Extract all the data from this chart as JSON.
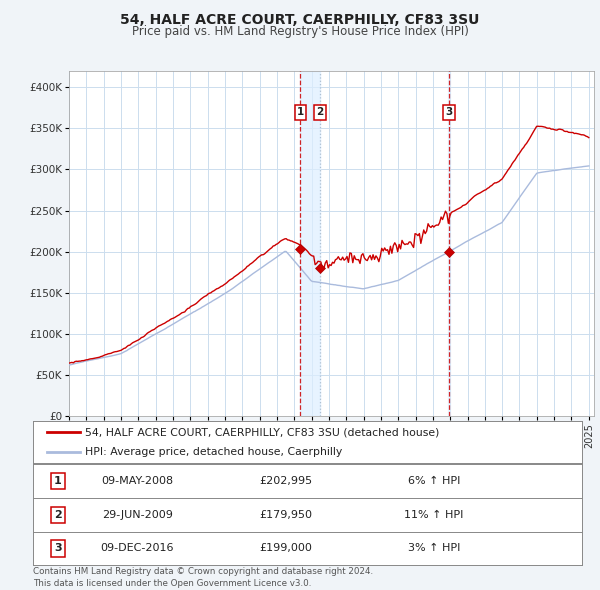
{
  "title": "54, HALF ACRE COURT, CAERPHILLY, CF83 3SU",
  "subtitle": "Price paid vs. HM Land Registry's House Price Index (HPI)",
  "legend_line1": "54, HALF ACRE COURT, CAERPHILLY, CF83 3SU (detached house)",
  "legend_line2": "HPI: Average price, detached house, Caerphilly",
  "footer1": "Contains HM Land Registry data © Crown copyright and database right 2024.",
  "footer2": "This data is licensed under the Open Government Licence v3.0.",
  "sale_color": "#cc0000",
  "hpi_color": "#aabbdd",
  "background_color": "#f0f4f8",
  "plot_bg_color": "#ffffff",
  "grid_color": "#ccddee",
  "ylim": [
    0,
    420000
  ],
  "yticks": [
    0,
    50000,
    100000,
    150000,
    200000,
    250000,
    300000,
    350000,
    400000
  ],
  "ytick_labels": [
    "£0",
    "£50K",
    "£100K",
    "£150K",
    "£200K",
    "£250K",
    "£300K",
    "£350K",
    "£400K"
  ],
  "sale_dates": [
    2008.36,
    2009.49,
    2016.94
  ],
  "sale_prices": [
    202995,
    179950,
    199000
  ],
  "sale_labels": [
    "1",
    "2",
    "3"
  ],
  "table_rows": [
    [
      "1",
      "09-MAY-2008",
      "£202,995",
      "6% ↑ HPI"
    ],
    [
      "2",
      "29-JUN-2009",
      "£179,950",
      "11% ↑ HPI"
    ],
    [
      "3",
      "09-DEC-2016",
      "£199,000",
      "3% ↑ HPI"
    ]
  ]
}
